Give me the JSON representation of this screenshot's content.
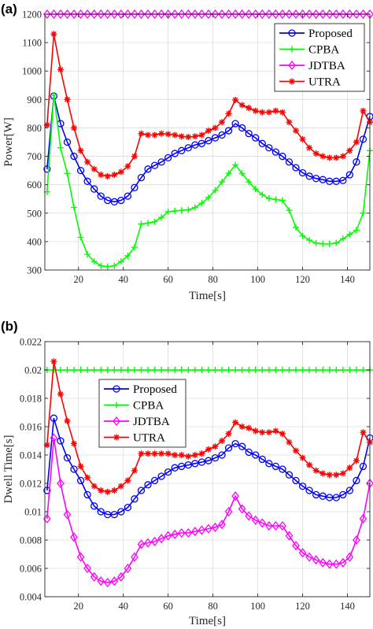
{
  "chart_data": [
    {
      "type": "line",
      "panel_label": "(a)",
      "xlabel": "Time[s]",
      "ylabel": "Power[W]",
      "xlim": [
        5,
        150
      ],
      "ylim": [
        300,
        1200
      ],
      "xticks": [
        "20",
        "40",
        "60",
        "80",
        "100",
        "120",
        "140"
      ],
      "xtick_values": [
        20,
        40,
        60,
        80,
        100,
        120,
        140
      ],
      "yticks": [
        "300",
        "400",
        "500",
        "600",
        "700",
        "800",
        "900",
        "1000",
        "1100",
        "1200"
      ],
      "ytick_values": [
        300,
        400,
        500,
        600,
        700,
        800,
        900,
        1000,
        1100,
        1200
      ],
      "grid": true,
      "legend_position": "top-right",
      "x": [
        6,
        9,
        12,
        15,
        18,
        21,
        24,
        27,
        30,
        33,
        36,
        39,
        42,
        45,
        48,
        51,
        54,
        57,
        60,
        63,
        66,
        69,
        72,
        75,
        78,
        81,
        84,
        87,
        90,
        93,
        96,
        99,
        102,
        105,
        108,
        111,
        114,
        117,
        120,
        123,
        126,
        129,
        132,
        135,
        138,
        141,
        144,
        147,
        150
      ],
      "series": [
        {
          "name": "Proposed",
          "color": "#0000ff",
          "marker": "circle",
          "values": [
            655,
            912,
            815,
            750,
            700,
            650,
            612,
            585,
            560,
            545,
            540,
            545,
            560,
            590,
            625,
            655,
            668,
            680,
            695,
            710,
            720,
            730,
            740,
            745,
            755,
            765,
            775,
            790,
            815,
            800,
            780,
            765,
            745,
            730,
            715,
            700,
            680,
            660,
            642,
            630,
            622,
            618,
            612,
            612,
            615,
            635,
            680,
            760,
            840
          ]
        },
        {
          "name": "CPBA",
          "color": "#00ff00",
          "marker": "plus",
          "values": [
            575,
            915,
            730,
            640,
            520,
            415,
            355,
            330,
            315,
            312,
            315,
            330,
            350,
            380,
            462,
            465,
            470,
            485,
            505,
            508,
            510,
            512,
            520,
            535,
            555,
            580,
            610,
            640,
            670,
            640,
            610,
            585,
            565,
            552,
            548,
            545,
            510,
            450,
            420,
            405,
            395,
            392,
            392,
            395,
            410,
            425,
            440,
            500,
            720
          ]
        },
        {
          "name": "JDTBA",
          "color": "#ff00ff",
          "marker": "diamond",
          "values": [
            1200,
            1200,
            1200,
            1200,
            1200,
            1200,
            1200,
            1200,
            1200,
            1200,
            1200,
            1200,
            1200,
            1200,
            1200,
            1200,
            1200,
            1200,
            1200,
            1200,
            1200,
            1200,
            1200,
            1200,
            1200,
            1200,
            1200,
            1200,
            1200,
            1200,
            1200,
            1200,
            1200,
            1200,
            1200,
            1200,
            1200,
            1200,
            1200,
            1200,
            1200,
            1200,
            1200,
            1200,
            1200,
            1200,
            1200,
            1200,
            1200
          ]
        },
        {
          "name": "UTRA",
          "color": "#ff0000",
          "marker": "star",
          "values": [
            810,
            1130,
            1005,
            900,
            800,
            720,
            680,
            655,
            635,
            630,
            635,
            645,
            665,
            700,
            780,
            775,
            775,
            780,
            778,
            775,
            770,
            768,
            770,
            775,
            790,
            800,
            820,
            850,
            898,
            880,
            870,
            860,
            855,
            855,
            860,
            855,
            820,
            790,
            760,
            730,
            710,
            700,
            695,
            695,
            700,
            720,
            750,
            860,
            820
          ]
        }
      ]
    },
    {
      "type": "line",
      "panel_label": "(b)",
      "xlabel": "Time[s]",
      "ylabel": "Dwell Time[s]",
      "xlim": [
        5,
        150
      ],
      "ylim": [
        0.004,
        0.022
      ],
      "xticks": [
        "20",
        "40",
        "60",
        "80",
        "100",
        "120",
        "140"
      ],
      "xtick_values": [
        20,
        40,
        60,
        80,
        100,
        120,
        140
      ],
      "yticks": [
        "0.004",
        "0.006",
        "0.008",
        "0.01",
        "0.012",
        "0.014",
        "0.016",
        "0.018",
        "0.02",
        "0.022"
      ],
      "ytick_values": [
        0.004,
        0.006,
        0.008,
        0.01,
        0.012,
        0.014,
        0.016,
        0.018,
        0.02,
        0.022
      ],
      "grid": true,
      "legend_position": "upper-left",
      "x": [
        6,
        9,
        12,
        15,
        18,
        21,
        24,
        27,
        30,
        33,
        36,
        39,
        42,
        45,
        48,
        51,
        54,
        57,
        60,
        63,
        66,
        69,
        72,
        75,
        78,
        81,
        84,
        87,
        90,
        93,
        96,
        99,
        102,
        105,
        108,
        111,
        114,
        117,
        120,
        123,
        126,
        129,
        132,
        135,
        138,
        141,
        144,
        147,
        150
      ],
      "series": [
        {
          "name": "Proposed",
          "color": "#0000ff",
          "marker": "circle",
          "values": [
            0.0115,
            0.0166,
            0.015,
            0.0138,
            0.013,
            0.0122,
            0.0112,
            0.0104,
            0.01,
            0.0098,
            0.0098,
            0.01,
            0.0103,
            0.0109,
            0.0115,
            0.0119,
            0.0122,
            0.0125,
            0.0128,
            0.0131,
            0.0132,
            0.0133,
            0.0134,
            0.0135,
            0.0136,
            0.0138,
            0.014,
            0.0145,
            0.0148,
            0.0146,
            0.0142,
            0.014,
            0.0137,
            0.0134,
            0.0132,
            0.013,
            0.0126,
            0.0122,
            0.0118,
            0.0115,
            0.0112,
            0.0111,
            0.011,
            0.011,
            0.0112,
            0.0115,
            0.0122,
            0.0132,
            0.0152
          ]
        },
        {
          "name": "CPBA",
          "color": "#00ff00",
          "marker": "plus",
          "values": [
            0.02,
            0.02,
            0.02,
            0.02,
            0.02,
            0.02,
            0.02,
            0.02,
            0.02,
            0.02,
            0.02,
            0.02,
            0.02,
            0.02,
            0.02,
            0.02,
            0.02,
            0.02,
            0.02,
            0.02,
            0.02,
            0.02,
            0.02,
            0.02,
            0.02,
            0.02,
            0.02,
            0.02,
            0.02,
            0.02,
            0.02,
            0.02,
            0.02,
            0.02,
            0.02,
            0.02,
            0.02,
            0.02,
            0.02,
            0.02,
            0.02,
            0.02,
            0.02,
            0.02,
            0.02,
            0.02,
            0.02,
            0.02,
            0.02
          ]
        },
        {
          "name": "JDTBA",
          "color": "#ff00ff",
          "marker": "diamond",
          "values": [
            0.0095,
            0.0152,
            0.012,
            0.0098,
            0.0082,
            0.0068,
            0.006,
            0.0054,
            0.0051,
            0.005,
            0.0051,
            0.0054,
            0.006,
            0.0068,
            0.0077,
            0.0078,
            0.0079,
            0.0081,
            0.0083,
            0.0084,
            0.0085,
            0.0085,
            0.0086,
            0.0087,
            0.0088,
            0.0089,
            0.0091,
            0.01,
            0.0111,
            0.0102,
            0.0097,
            0.0094,
            0.0092,
            0.009,
            0.009,
            0.009,
            0.0083,
            0.0076,
            0.0071,
            0.0068,
            0.0066,
            0.0064,
            0.0063,
            0.0063,
            0.0064,
            0.0068,
            0.008,
            0.0095,
            0.012
          ]
        },
        {
          "name": "UTRA",
          "color": "#ff0000",
          "marker": "star",
          "values": [
            0.0147,
            0.0206,
            0.0183,
            0.0164,
            0.0148,
            0.0132,
            0.0124,
            0.0118,
            0.0115,
            0.0114,
            0.0115,
            0.0118,
            0.0122,
            0.0129,
            0.0141,
            0.0141,
            0.0141,
            0.0141,
            0.0141,
            0.014,
            0.014,
            0.0139,
            0.014,
            0.0141,
            0.0144,
            0.0146,
            0.015,
            0.0155,
            0.0163,
            0.016,
            0.0159,
            0.0157,
            0.0156,
            0.0156,
            0.0157,
            0.0155,
            0.0149,
            0.0143,
            0.0138,
            0.0133,
            0.0129,
            0.0127,
            0.0126,
            0.0126,
            0.0127,
            0.0131,
            0.0136,
            0.0156,
            0.0149
          ]
        }
      ]
    }
  ]
}
